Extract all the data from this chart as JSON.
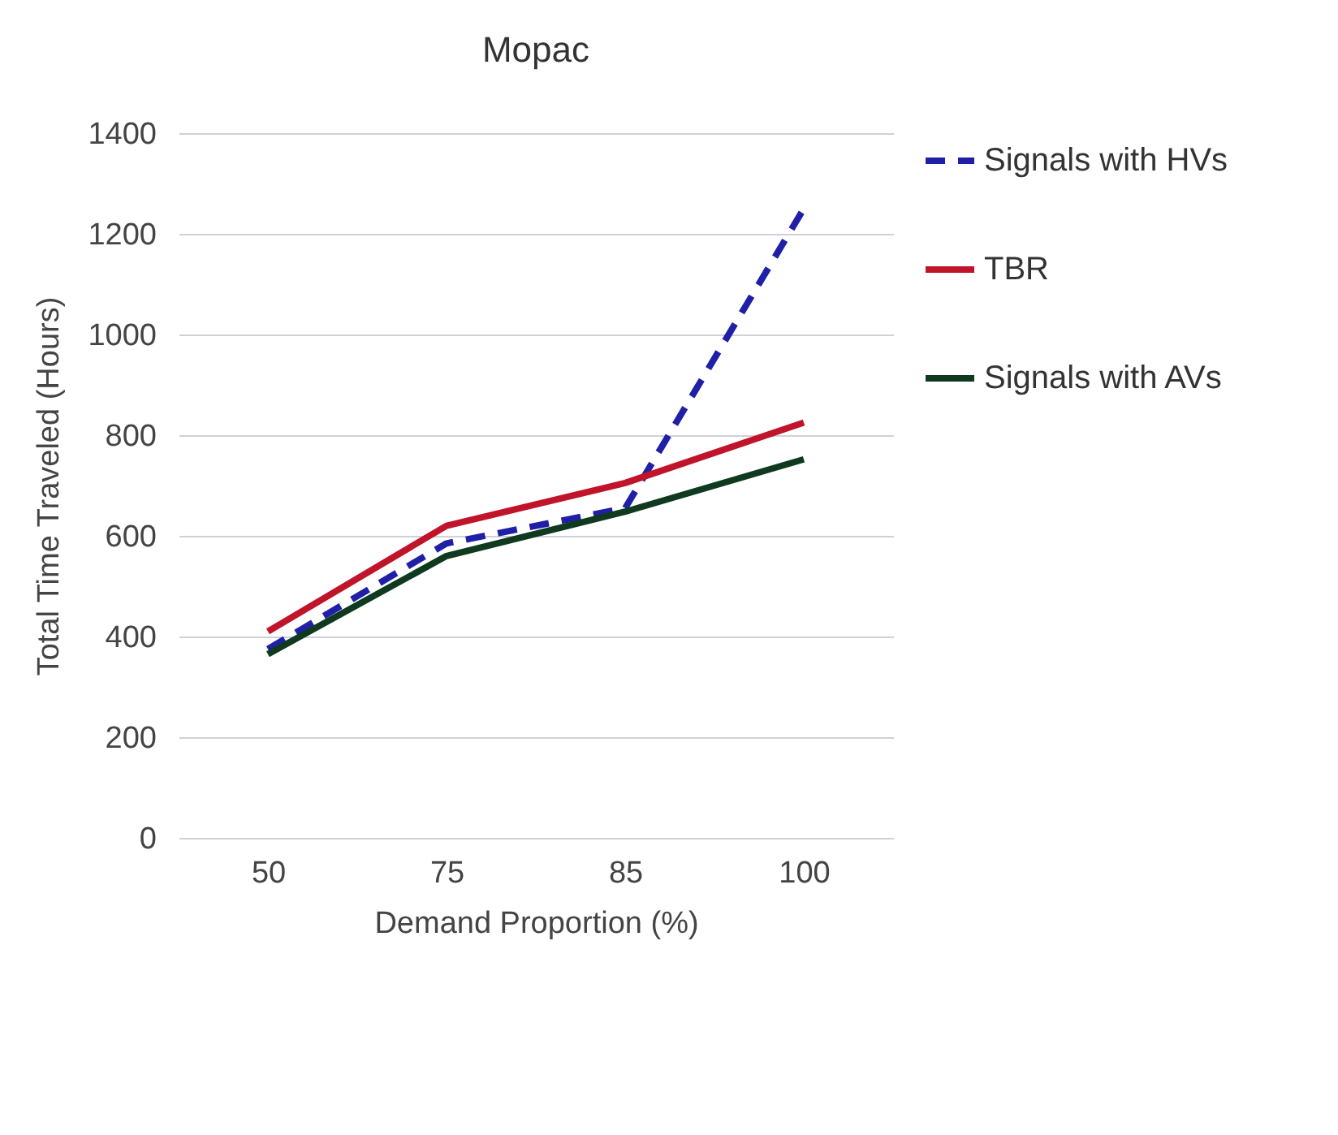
{
  "chart_data": {
    "type": "line",
    "title": "Mopac",
    "xlabel": "Demand Proportion (%)",
    "ylabel": "Total Time Traveled (Hours)",
    "categories": [
      "50",
      "75",
      "85",
      "100"
    ],
    "series": [
      {
        "name": "Signals with HVs",
        "color": "#1f1fa8",
        "line_style": "dashed",
        "values": [
          375,
          585,
          655,
          1250
        ]
      },
      {
        "name": "TBR",
        "color": "#c0142a",
        "line_style": "solid",
        "values": [
          410,
          620,
          705,
          825
        ]
      },
      {
        "name": "Signals with AVs",
        "color": "#0f3a1f",
        "line_style": "solid",
        "values": [
          365,
          560,
          648,
          752
        ]
      }
    ],
    "ylim": [
      0,
      1400
    ],
    "yticks": [
      0,
      200,
      400,
      600,
      800,
      1000,
      1200,
      1400
    ],
    "grid": "y",
    "legend": "right",
    "marker": "none"
  }
}
